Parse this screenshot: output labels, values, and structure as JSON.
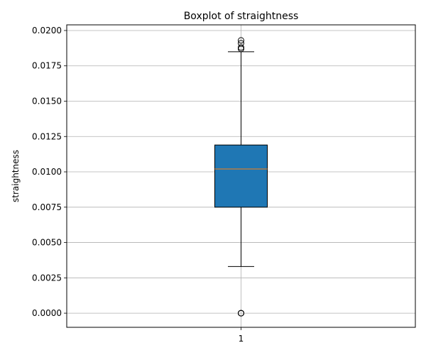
{
  "chart_data": {
    "type": "boxplot",
    "title": "Boxplot of straightness",
    "xlabel": "",
    "ylabel": "straightness",
    "categories": [
      "1"
    ],
    "ylim": [
      -0.001,
      0.0204
    ],
    "yticks": [
      0.0,
      0.0025,
      0.005,
      0.0075,
      0.01,
      0.0125,
      0.015,
      0.0175,
      0.02
    ],
    "ytick_labels": [
      "0.0000",
      "0.0025",
      "0.0050",
      "0.0075",
      "0.0100",
      "0.0125",
      "0.0150",
      "0.0175",
      "0.0200"
    ],
    "grid": true,
    "box": {
      "whisker_low": 0.0033,
      "q1": 0.0075,
      "median": 0.0102,
      "q3": 0.0119,
      "whisker_high": 0.0185,
      "outliers": [
        0.0187,
        0.0188,
        0.0191,
        0.0193,
        0.0,
        0.0,
        0.0
      ]
    },
    "colors": {
      "box_fill": "#1f77b4",
      "median": "#ff7f0e",
      "grid": "#b0b0b0",
      "edge": "#000000"
    }
  }
}
